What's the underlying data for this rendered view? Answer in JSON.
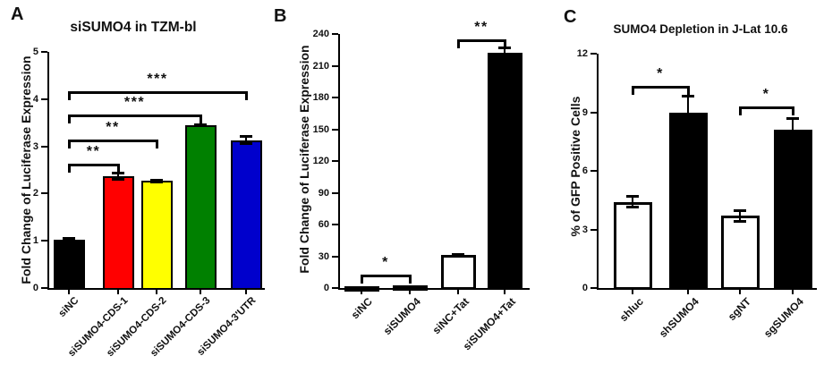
{
  "chart_data": [
    {
      "type": "bar",
      "panel_letter": "A",
      "title": "siSUMO4 in TZM-bl",
      "ylabel": "Fold Change of Luciferase Expression",
      "xlabel": "",
      "ylim": [
        0,
        5
      ],
      "yticks": [
        0,
        1,
        2,
        3,
        4,
        5
      ],
      "categories": [
        "siNC",
        "siSUMO4-CDS-1",
        "siSUMO4-CDS-2",
        "siSUMO4-CDS-3",
        "siSUMO4-3'UTR"
      ],
      "values": [
        1.03,
        2.37,
        2.27,
        3.45,
        3.13
      ],
      "errors": [
        0.04,
        0.08,
        0.03,
        0.02,
        0.09
      ],
      "bar_colors": [
        "#000000",
        "#ff0000",
        "#ffff00",
        "#008000",
        "#0000cc"
      ],
      "significance_brackets": [
        {
          "from_index": 0,
          "to_index": 1,
          "y_value": 2.63,
          "label": "**"
        },
        {
          "from_index": 0,
          "to_index": 2,
          "y_value": 3.14,
          "label": "**"
        },
        {
          "from_index": 0,
          "to_index": 3,
          "y_value": 3.67,
          "label": "***"
        },
        {
          "from_index": 0,
          "to_index": 4,
          "y_value": 4.17,
          "label": "***"
        }
      ],
      "grid": false,
      "legend": "none"
    },
    {
      "type": "bar",
      "panel_letter": "B",
      "title": "",
      "ylabel": "Fold Change of Luciferase Expression",
      "xlabel": "",
      "ylim": [
        0,
        240
      ],
      "yticks": [
        0,
        30,
        60,
        90,
        120,
        150,
        180,
        210,
        240
      ],
      "categories": [
        "siNC",
        "siSUMO4",
        "siNC+Tat",
        "siSUMO4+Tat"
      ],
      "values": [
        1.5,
        2.5,
        31,
        222
      ],
      "errors": [
        0,
        0,
        1,
        5
      ],
      "bar_colors": [
        "#000000",
        "#000000",
        "#ffffff",
        "#000000"
      ],
      "significance_brackets": [
        {
          "from_index": 0,
          "to_index": 1,
          "y_value": 13,
          "label": "*"
        },
        {
          "from_index": 2,
          "to_index": 3,
          "y_value": 235,
          "label": "**"
        }
      ],
      "grid": false,
      "legend": "none"
    },
    {
      "type": "bar",
      "panel_letter": "C",
      "title": "SUMO4 Depletion in J-Lat 10.6",
      "ylabel": "% of GFP Positive Cells",
      "xlabel": "",
      "ylim": [
        0,
        12
      ],
      "yticks": [
        0,
        3,
        6,
        9,
        12
      ],
      "categories": [
        "shluc",
        "shSUMO4",
        "sgNT",
        "sgSUMO4"
      ],
      "values": [
        4.4,
        9.0,
        3.7,
        8.1
      ],
      "errors": [
        0.3,
        0.85,
        0.3,
        0.6
      ],
      "bar_colors": [
        "#ffffff",
        "#000000",
        "#ffffff",
        "#000000"
      ],
      "significance_brackets": [
        {
          "from_index": 0,
          "to_index": 1,
          "y_value": 10.35,
          "label": "*"
        },
        {
          "from_index": 2,
          "to_index": 3,
          "y_value": 9.3,
          "label": "*"
        }
      ],
      "grid": false,
      "legend": "none"
    }
  ],
  "colors": {
    "axis": "#000000",
    "text": "#111111",
    "background": "#ffffff"
  }
}
